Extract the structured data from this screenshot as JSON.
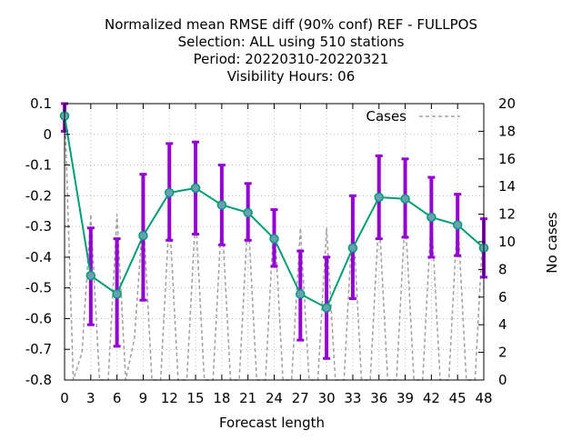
{
  "chart_data": {
    "type": "line",
    "title_lines": [
      "Normalized mean RMSE diff (90% conf) REF - FULLPOS",
      "Selection: ALL using   510 stations",
      "Period: 20220310-20220321",
      "Visibility   Hours:  06"
    ],
    "xlabel": "Forecast length",
    "ylabel": "",
    "y2label": "No cases",
    "xlim": [
      0,
      48
    ],
    "ylim": [
      -0.8,
      0.1
    ],
    "y2lim": [
      0,
      20
    ],
    "x_ticks": [
      0,
      3,
      6,
      9,
      12,
      15,
      18,
      21,
      24,
      27,
      30,
      33,
      36,
      39,
      42,
      45,
      48
    ],
    "y_ticks": [
      {
        "v": 0.1,
        "label": "0.1"
      },
      {
        "v": 0,
        "label": "0"
      },
      {
        "v": -0.1,
        "label": "-0.1"
      },
      {
        "v": -0.2,
        "label": "-0.2"
      },
      {
        "v": -0.3,
        "label": "-0.3"
      },
      {
        "v": -0.4,
        "label": "-0.4"
      },
      {
        "v": -0.5,
        "label": "-0.5"
      },
      {
        "v": -0.6,
        "label": "-0.6"
      },
      {
        "v": -0.7,
        "label": "-0.7"
      },
      {
        "v": -0.8,
        "label": "-0.8"
      }
    ],
    "y2_ticks": [
      0,
      2,
      4,
      6,
      8,
      10,
      12,
      14,
      16,
      18,
      20
    ],
    "grid": true,
    "legend": {
      "position": "top-right",
      "entries": [
        "Cases"
      ]
    },
    "colors": {
      "line": "#009e73",
      "marker": "#6a9fb5",
      "errorbar": "#9400d3",
      "cases": "#a0a0a0"
    },
    "series": [
      {
        "x": [
          0,
          3,
          6,
          9,
          12,
          15,
          18,
          21,
          24,
          27,
          30,
          33,
          36,
          39,
          42,
          45,
          48
        ],
        "values": [
          0.06,
          -0.46,
          -0.52,
          -0.33,
          -0.19,
          -0.175,
          -0.23,
          -0.255,
          -0.34,
          -0.52,
          -0.565,
          -0.37,
          -0.205,
          -0.21,
          -0.27,
          -0.295,
          -0.37
        ],
        "err_low": [
          0.01,
          -0.62,
          -0.69,
          -0.54,
          -0.345,
          -0.325,
          -0.36,
          -0.345,
          -0.43,
          -0.67,
          -0.73,
          -0.535,
          -0.34,
          -0.335,
          -0.4,
          -0.395,
          -0.465
        ],
        "err_high": [
          0.1,
          -0.305,
          -0.34,
          -0.13,
          -0.03,
          -0.025,
          -0.1,
          -0.16,
          -0.245,
          -0.38,
          -0.4,
          -0.2,
          -0.07,
          -0.08,
          -0.14,
          -0.195,
          -0.275
        ]
      },
      {
        "name": "Cases",
        "x": [
          0,
          1,
          2,
          3,
          4,
          5,
          6,
          7,
          8,
          9,
          10,
          11,
          12,
          13,
          14,
          15,
          16,
          17,
          18,
          19,
          20,
          21,
          22,
          23,
          24,
          25,
          26,
          27,
          28,
          29,
          30,
          31,
          32,
          33,
          34,
          35,
          36,
          37,
          38,
          39,
          40,
          41,
          42,
          43,
          44,
          45,
          46,
          47,
          48
        ],
        "values": [
          20,
          0,
          2,
          12,
          0,
          0,
          12,
          0,
          3,
          12,
          0,
          0,
          12,
          0,
          0,
          12,
          0,
          0,
          12,
          0,
          0,
          12,
          0,
          0,
          12,
          0,
          0,
          11,
          0,
          0,
          11,
          0,
          0,
          12,
          0,
          0,
          12,
          0,
          0,
          12,
          0,
          0,
          12,
          0,
          0,
          12,
          0,
          0,
          12
        ]
      }
    ]
  }
}
